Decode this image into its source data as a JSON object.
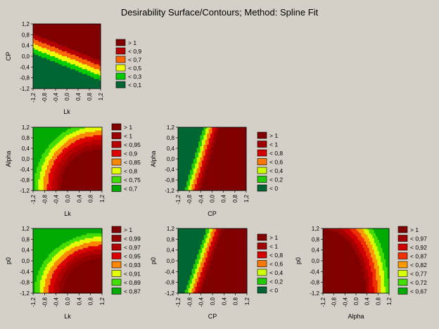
{
  "title": "Desirability Surface/Contours; Method: Spline Fit",
  "chart_data": [
    {
      "type": "heatmap",
      "id": "lk-cp",
      "xlabel": "Lk",
      "ylabel": "CP",
      "xlim": [
        -1.2,
        1.2
      ],
      "ylim": [
        -1.2,
        1.2
      ],
      "xticks": [
        "-1,2",
        "-0,8",
        "-0,4",
        "0,0",
        "0,4",
        "0,8",
        "1,2"
      ],
      "yticks": [
        "1,2",
        "0,8",
        "0,4",
        "0,0",
        "-0,4",
        "-0,8",
        "-1,2"
      ],
      "legend": [
        {
          "label": "> 1",
          "color": "#800000"
        },
        {
          "label": "< 0,9",
          "color": "#b40000"
        },
        {
          "label": "< 0,7",
          "color": "#ff6600"
        },
        {
          "label": "< 0,5",
          "color": "#f0ff00"
        },
        {
          "label": "< 0,3",
          "color": "#00cc00"
        },
        {
          "label": "< 0,1",
          "color": "#006633"
        }
      ]
    },
    {
      "type": "heatmap",
      "id": "lk-alpha",
      "xlabel": "Lk",
      "ylabel": "Alpha",
      "xlim": [
        -1.2,
        1.2
      ],
      "ylim": [
        -1.2,
        1.2
      ],
      "xticks": [
        "-1,2",
        "-0,8",
        "-0,4",
        "0,0",
        "0,4",
        "0,8",
        "1,2"
      ],
      "yticks": [
        "1,2",
        "0,8",
        "0,4",
        "0,0",
        "-0,4",
        "-0,8",
        "-1,2"
      ],
      "legend": [
        {
          "label": "> 1",
          "color": "#800000"
        },
        {
          "label": "< 1",
          "color": "#9a0000"
        },
        {
          "label": "< 0,95",
          "color": "#b80000"
        },
        {
          "label": "< 0,9",
          "color": "#e00000"
        },
        {
          "label": "< 0,85",
          "color": "#ff8800"
        },
        {
          "label": "< 0,8",
          "color": "#e6ff00"
        },
        {
          "label": "< 0,75",
          "color": "#44dd00"
        },
        {
          "label": "< 0,7",
          "color": "#00aa00"
        }
      ]
    },
    {
      "type": "heatmap",
      "id": "cp-alpha",
      "xlabel": "CP",
      "ylabel": "Alpha",
      "xlim": [
        -1.2,
        1.2
      ],
      "ylim": [
        -1.2,
        1.2
      ],
      "xticks": [
        "-1,2",
        "-0,8",
        "-0,4",
        "0,0",
        "0,4",
        "0,8",
        "1,2"
      ],
      "yticks": [
        "1,2",
        "0,8",
        "0,4",
        "0,0",
        "-0,4",
        "-0,8",
        "-1,2"
      ],
      "legend": [
        {
          "label": "> 1",
          "color": "#800000"
        },
        {
          "label": "< 1",
          "color": "#a00000"
        },
        {
          "label": "< 0,8",
          "color": "#d40000"
        },
        {
          "label": "< 0,6",
          "color": "#ff7700"
        },
        {
          "label": "< 0,4",
          "color": "#ccff00"
        },
        {
          "label": "< 0,2",
          "color": "#22cc00"
        },
        {
          "label": "< 0",
          "color": "#006633"
        }
      ]
    },
    {
      "type": "heatmap",
      "id": "lk-p0",
      "xlabel": "Lk",
      "ylabel": "p0",
      "xlim": [
        -1.2,
        1.2
      ],
      "ylim": [
        -1.2,
        1.2
      ],
      "xticks": [
        "-1,2",
        "-0,8",
        "-0,4",
        "0,0",
        "0,4",
        "0,8",
        "1,2"
      ],
      "yticks": [
        "1,2",
        "0,8",
        "0,4",
        "0,0",
        "-0,4",
        "-0,8",
        "-1,2"
      ],
      "legend": [
        {
          "label": "> 1",
          "color": "#800000"
        },
        {
          "label": "< 0,99",
          "color": "#940000"
        },
        {
          "label": "< 0,97",
          "color": "#b00000"
        },
        {
          "label": "< 0,95",
          "color": "#dd0000"
        },
        {
          "label": "< 0,93",
          "color": "#ff8800"
        },
        {
          "label": "< 0,91",
          "color": "#e6ff00"
        },
        {
          "label": "< 0,89",
          "color": "#44dd00"
        },
        {
          "label": "< 0,87",
          "color": "#00aa00"
        }
      ]
    },
    {
      "type": "heatmap",
      "id": "cp-p0",
      "xlabel": "CP",
      "ylabel": "p0",
      "xlim": [
        -1.2,
        1.2
      ],
      "ylim": [
        -1.2,
        1.2
      ],
      "xticks": [
        "-1,2",
        "-0,8",
        "-0,4",
        "0,0",
        "0,4",
        "0,8",
        "1,2"
      ],
      "yticks": [
        "1,2",
        "0,8",
        "0,4",
        "0,0",
        "-0,4",
        "-0,8",
        "-1,2"
      ],
      "legend": [
        {
          "label": "> 1",
          "color": "#800000"
        },
        {
          "label": "< 1",
          "color": "#a00000"
        },
        {
          "label": "< 0,8",
          "color": "#d40000"
        },
        {
          "label": "< 0,6",
          "color": "#ff7700"
        },
        {
          "label": "< 0,4",
          "color": "#ccff00"
        },
        {
          "label": "< 0,2",
          "color": "#22cc00"
        },
        {
          "label": "< 0",
          "color": "#006633"
        }
      ]
    },
    {
      "type": "heatmap",
      "id": "alpha-p0",
      "xlabel": "Alpha",
      "ylabel": "p0",
      "xlim": [
        -1.2,
        1.2
      ],
      "ylim": [
        -1.2,
        1.2
      ],
      "xticks": [
        "-1,2",
        "-0,8",
        "-0,4",
        "0,0",
        "0,4",
        "0,8",
        "1,2"
      ],
      "yticks": [
        "1,2",
        "0,8",
        "0,4",
        "0,0",
        "-0,4",
        "-0,8",
        "-1,2"
      ],
      "legend": [
        {
          "label": "> 1",
          "color": "#800000"
        },
        {
          "label": "< 0,97",
          "color": "#a00000"
        },
        {
          "label": "< 0,92",
          "color": "#d00000"
        },
        {
          "label": "< 0,87",
          "color": "#f03000"
        },
        {
          "label": "< 0,82",
          "color": "#ff9900"
        },
        {
          "label": "< 0,77",
          "color": "#d6ff00"
        },
        {
          "label": "< 0,72",
          "color": "#44dd00"
        },
        {
          "label": "< 0,67",
          "color": "#00aa00"
        }
      ]
    }
  ]
}
